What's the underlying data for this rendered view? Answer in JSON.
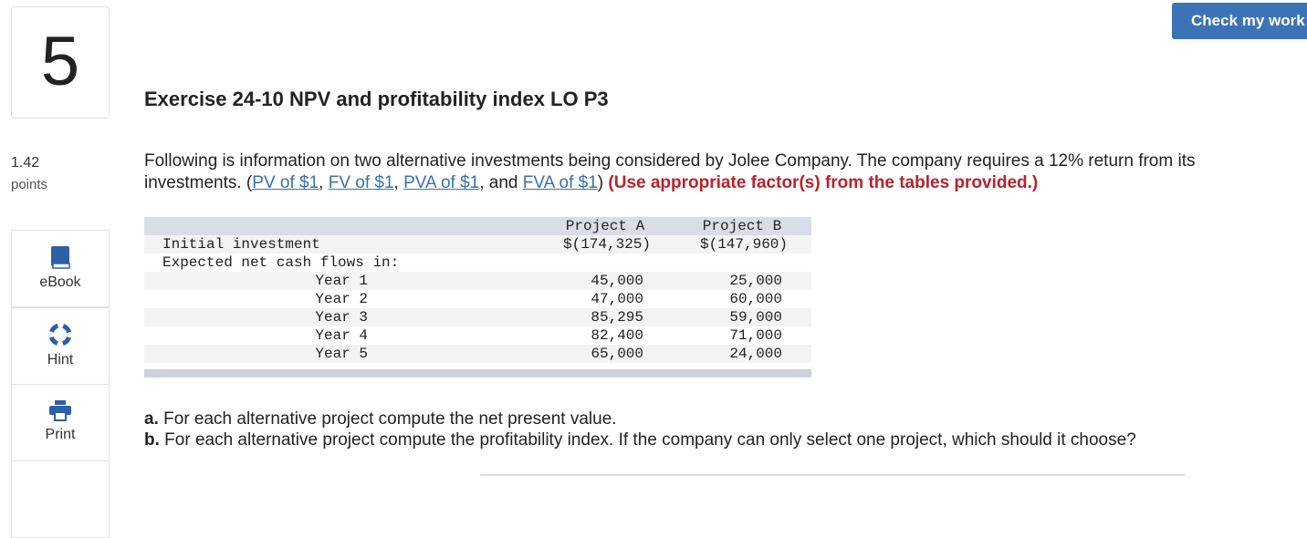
{
  "question_number": "5",
  "points_value": "1.42",
  "points_label": "points",
  "side_buttons": [
    "eBook",
    "Hint",
    "Print"
  ],
  "check_button": "Check my work",
  "title": "Exercise 24-10 NPV and profitability index LO P3",
  "intro": {
    "lead": "Following is information on two alternative investments being considered by Jolee Company. The company requires a 12% return from its investments. (",
    "links": [
      "PV of $1",
      "FV of $1",
      "PVA of $1",
      "FVA of $1"
    ],
    "separators": [
      ", ",
      ", ",
      ", and ",
      ")"
    ],
    "instruction": "(Use appropriate factor(s) from the tables provided.)"
  },
  "table": {
    "header": [
      "Project A",
      "Project B"
    ],
    "initial": {
      "label": "Initial investment",
      "a": "$(174,325)",
      "b": "$(147,960)"
    },
    "section": "Expected net cash flows in:",
    "years": [
      {
        "label": "Year 1",
        "a": "45,000",
        "b": "25,000"
      },
      {
        "label": "Year 2",
        "a": "47,000",
        "b": "60,000"
      },
      {
        "label": "Year 3",
        "a": "85,295",
        "b": "59,000"
      },
      {
        "label": "Year 4",
        "a": "82,400",
        "b": "71,000"
      },
      {
        "label": "Year 5",
        "a": "65,000",
        "b": "24,000"
      }
    ]
  },
  "questions": [
    {
      "letter": "a.",
      "text": "For each alternative project compute the net present value."
    },
    {
      "letter": "b.",
      "text": "For each alternative project compute the profitability index. If the company can only select one project, which should it choose?"
    }
  ]
}
